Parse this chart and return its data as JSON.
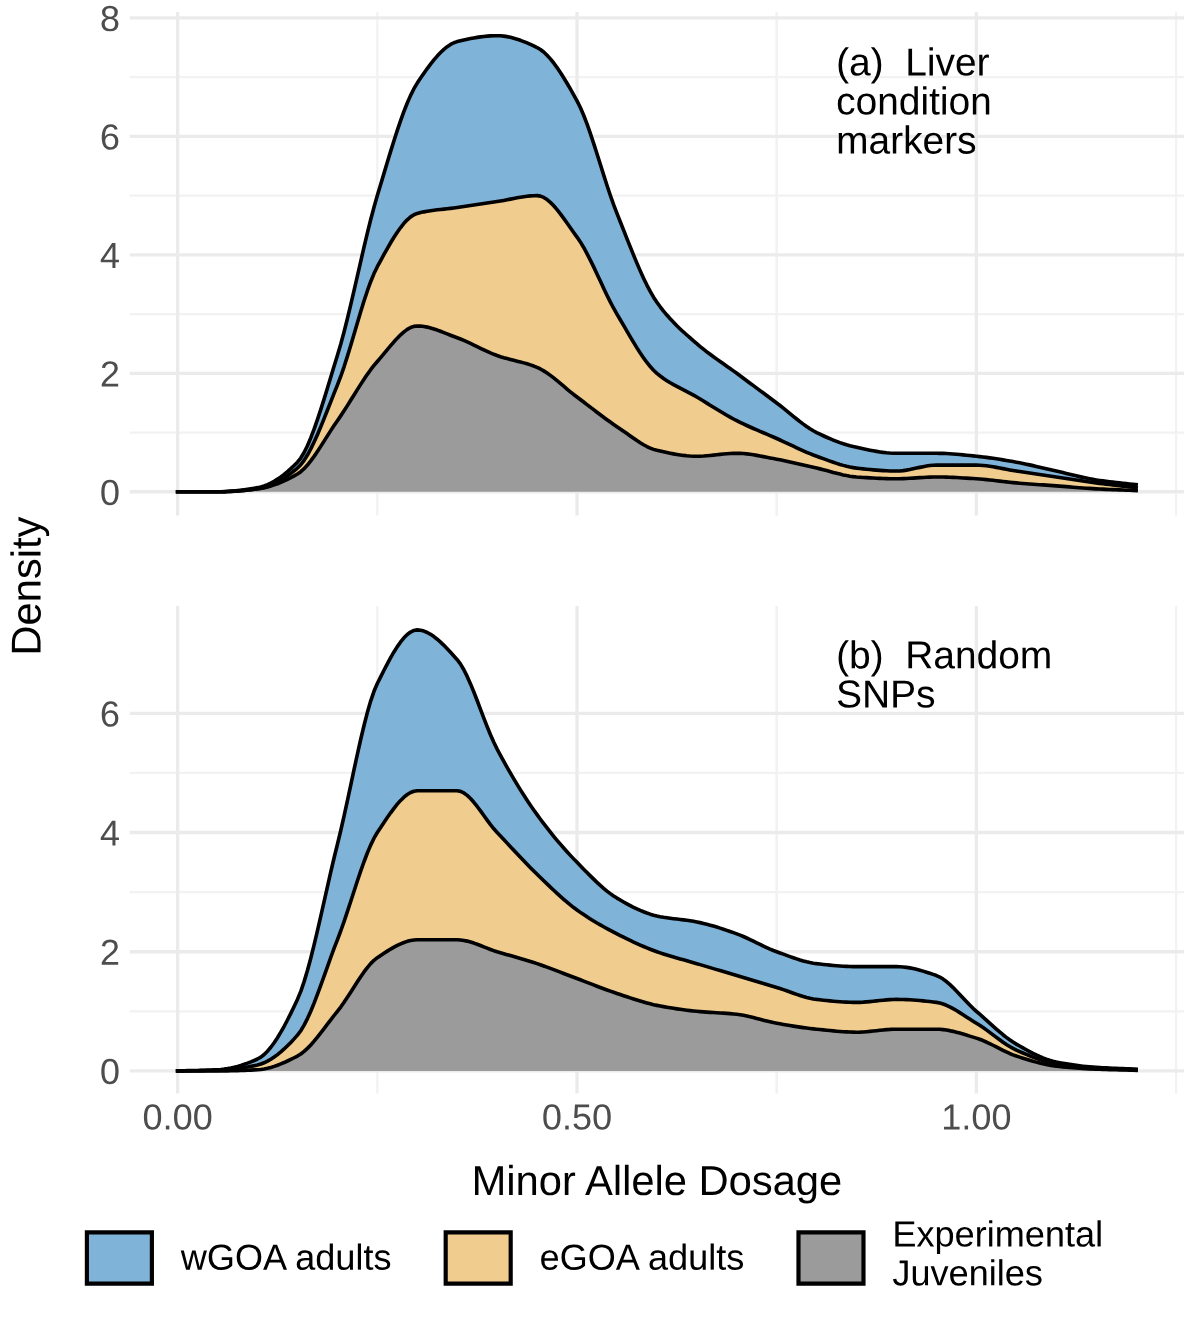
{
  "chart_data": [
    {
      "type": "area",
      "stacked": true,
      "ylabel": "Density",
      "annotations": [
        "(a)  Liver\ncondition\nmarkers"
      ],
      "x": [
        0,
        0.05,
        0.1,
        0.15,
        0.2,
        0.25,
        0.3,
        0.35,
        0.4,
        0.45,
        0.5,
        0.55,
        0.6,
        0.65,
        0.7,
        0.75,
        0.8,
        0.85,
        0.9,
        0.95,
        1.0,
        1.05,
        1.1,
        1.15,
        1.2
      ],
      "series": [
        {
          "color": "#9b9b9b",
          "values": [
            0,
            0,
            0.05,
            0.3,
            1.2,
            2.2,
            2.8,
            2.6,
            2.3,
            2.1,
            1.6,
            1.1,
            0.7,
            0.6,
            0.65,
            0.55,
            0.4,
            0.25,
            0.22,
            0.25,
            0.22,
            0.15,
            0.1,
            0.05,
            0.02
          ]
        },
        {
          "color": "#f0cd8f",
          "values": [
            0,
            0,
            0,
            0.1,
            0.6,
            1.6,
            1.9,
            2.2,
            2.6,
            2.9,
            2.7,
            1.9,
            1.3,
            1.0,
            0.55,
            0.35,
            0.2,
            0.15,
            0.13,
            0.2,
            0.23,
            0.2,
            0.15,
            0.1,
            0.05
          ]
        },
        {
          "color": "#7fb3d8",
          "values": [
            0,
            0,
            0.02,
            0.1,
            0.5,
            1.2,
            2.2,
            2.8,
            2.8,
            2.5,
            2.3,
            1.7,
            1.2,
            0.9,
            0.8,
            0.6,
            0.4,
            0.35,
            0.3,
            0.2,
            0.15,
            0.15,
            0.1,
            0.05,
            0.05
          ]
        }
      ],
      "xlim": [
        -0.06,
        1.26
      ],
      "xticks": [
        {
          "value": 0,
          "label": null
        },
        {
          "value": 0.5,
          "label": null
        },
        {
          "value": 1.0,
          "label": null
        }
      ],
      "ylim": [
        -0.4,
        8.1
      ],
      "yticks": [
        0,
        2,
        4,
        6,
        8
      ],
      "tick_labels": "y",
      "grid": true
    },
    {
      "type": "area",
      "stacked": true,
      "xlabel": "Minor Allele Dosage",
      "annotations": [
        "(b)  Random\nSNPs"
      ],
      "x": [
        0,
        0.05,
        0.1,
        0.15,
        0.2,
        0.25,
        0.3,
        0.35,
        0.4,
        0.45,
        0.5,
        0.55,
        0.6,
        0.65,
        0.7,
        0.75,
        0.8,
        0.85,
        0.9,
        0.95,
        1.0,
        1.05,
        1.1,
        1.15,
        1.2
      ],
      "series": [
        {
          "name": "Experimental\nJuveniles",
          "color": "#9b9b9b",
          "values": [
            0,
            0,
            0.02,
            0.25,
            1.0,
            1.9,
            2.2,
            2.2,
            2.0,
            1.8,
            1.55,
            1.3,
            1.1,
            1.0,
            0.95,
            0.8,
            0.7,
            0.65,
            0.7,
            0.7,
            0.55,
            0.25,
            0.08,
            0.03,
            0.01
          ]
        },
        {
          "name": "eGOA adults",
          "color": "#f0cd8f",
          "values": [
            0,
            0.01,
            0.08,
            0.35,
            1.2,
            2.1,
            2.5,
            2.5,
            2.0,
            1.5,
            1.15,
            1.0,
            0.9,
            0.8,
            0.65,
            0.6,
            0.5,
            0.5,
            0.5,
            0.45,
            0.25,
            0.1,
            0.04,
            0.01,
            0.01
          ]
        },
        {
          "name": "wGOA adults",
          "color": "#7fb3d8",
          "values": [
            0,
            0.01,
            0.1,
            0.6,
            1.6,
            2.5,
            2.7,
            2.2,
            1.4,
            1.0,
            0.8,
            0.6,
            0.6,
            0.7,
            0.7,
            0.6,
            0.6,
            0.6,
            0.55,
            0.45,
            0.2,
            0.1,
            0.03,
            0.02,
            0.01
          ]
        }
      ],
      "xlim": [
        -0.06,
        1.26
      ],
      "xticks": [
        {
          "value": 0,
          "label": "0.00"
        },
        {
          "value": 0.5,
          "label": "0.50"
        },
        {
          "value": 1.0,
          "label": "1.00"
        }
      ],
      "ylim": [
        -0.38,
        7.8
      ],
      "yticks": [
        0,
        2,
        4,
        6
      ],
      "grid": true,
      "legend": "bottom"
    }
  ]
}
